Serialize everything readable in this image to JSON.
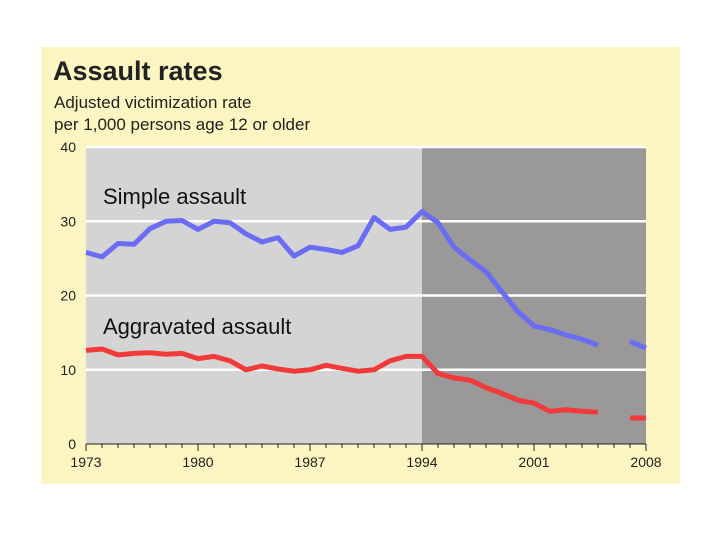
{
  "chart_data": {
    "type": "line",
    "title": "Assault rates",
    "subtitle_line1": "Adjusted victimization rate",
    "subtitle_line2": "per 1,000 persons age 12 or older",
    "xlabel": "",
    "ylabel": "",
    "xlim": [
      1973,
      2008
    ],
    "ylim": [
      0,
      40
    ],
    "y_ticks": [
      0,
      10,
      20,
      30,
      40
    ],
    "x_ticks": [
      1973,
      1980,
      1987,
      1994,
      2001,
      2008
    ],
    "shaded_period_start": 1994,
    "grid": true,
    "series": [
      {
        "name": "Simple assault",
        "color": "#6a6cf4",
        "points": [
          [
            1973,
            25.8
          ],
          [
            1974,
            25.2
          ],
          [
            1975,
            27.0
          ],
          [
            1976,
            26.9
          ],
          [
            1977,
            29.0
          ],
          [
            1978,
            30.0
          ],
          [
            1979,
            30.1
          ],
          [
            1980,
            28.9
          ],
          [
            1981,
            30.0
          ],
          [
            1982,
            29.8
          ],
          [
            1983,
            28.3
          ],
          [
            1984,
            27.2
          ],
          [
            1985,
            27.8
          ],
          [
            1986,
            25.3
          ],
          [
            1987,
            26.5
          ],
          [
            1988,
            26.2
          ],
          [
            1989,
            25.8
          ],
          [
            1990,
            26.7
          ],
          [
            1991,
            30.5
          ],
          [
            1992,
            28.9
          ],
          [
            1993,
            29.2
          ],
          [
            1994,
            31.3
          ],
          [
            1995,
            29.8
          ],
          [
            1996,
            26.5
          ],
          [
            1997,
            24.8
          ],
          [
            1998,
            23.2
          ],
          [
            1999,
            20.5
          ],
          [
            2000,
            17.8
          ],
          [
            2001,
            15.9
          ],
          [
            2002,
            15.4
          ],
          [
            2003,
            14.7
          ],
          [
            2004,
            14.1
          ],
          [
            2005,
            13.3
          ],
          null,
          [
            2007,
            13.8
          ],
          [
            2008,
            12.9
          ]
        ]
      },
      {
        "name": "Aggravated assault",
        "color": "#f23a3a",
        "points": [
          [
            1973,
            12.6
          ],
          [
            1974,
            12.8
          ],
          [
            1975,
            12.0
          ],
          [
            1976,
            12.2
          ],
          [
            1977,
            12.3
          ],
          [
            1978,
            12.1
          ],
          [
            1979,
            12.2
          ],
          [
            1980,
            11.5
          ],
          [
            1981,
            11.8
          ],
          [
            1982,
            11.2
          ],
          [
            1983,
            10.0
          ],
          [
            1984,
            10.5
          ],
          [
            1985,
            10.1
          ],
          [
            1986,
            9.8
          ],
          [
            1987,
            10.0
          ],
          [
            1988,
            10.6
          ],
          [
            1989,
            10.2
          ],
          [
            1990,
            9.8
          ],
          [
            1991,
            10.0
          ],
          [
            1992,
            11.2
          ],
          [
            1993,
            11.8
          ],
          [
            1994,
            11.8
          ],
          [
            1995,
            9.5
          ],
          [
            1996,
            8.9
          ],
          [
            1997,
            8.6
          ],
          [
            1998,
            7.6
          ],
          [
            1999,
            6.8
          ],
          [
            2000,
            5.9
          ],
          [
            2001,
            5.5
          ],
          [
            2002,
            4.4
          ],
          [
            2003,
            4.6
          ],
          [
            2004,
            4.4
          ],
          [
            2005,
            4.3
          ],
          null,
          [
            2007,
            3.5
          ],
          [
            2008,
            3.5
          ]
        ]
      }
    ]
  }
}
